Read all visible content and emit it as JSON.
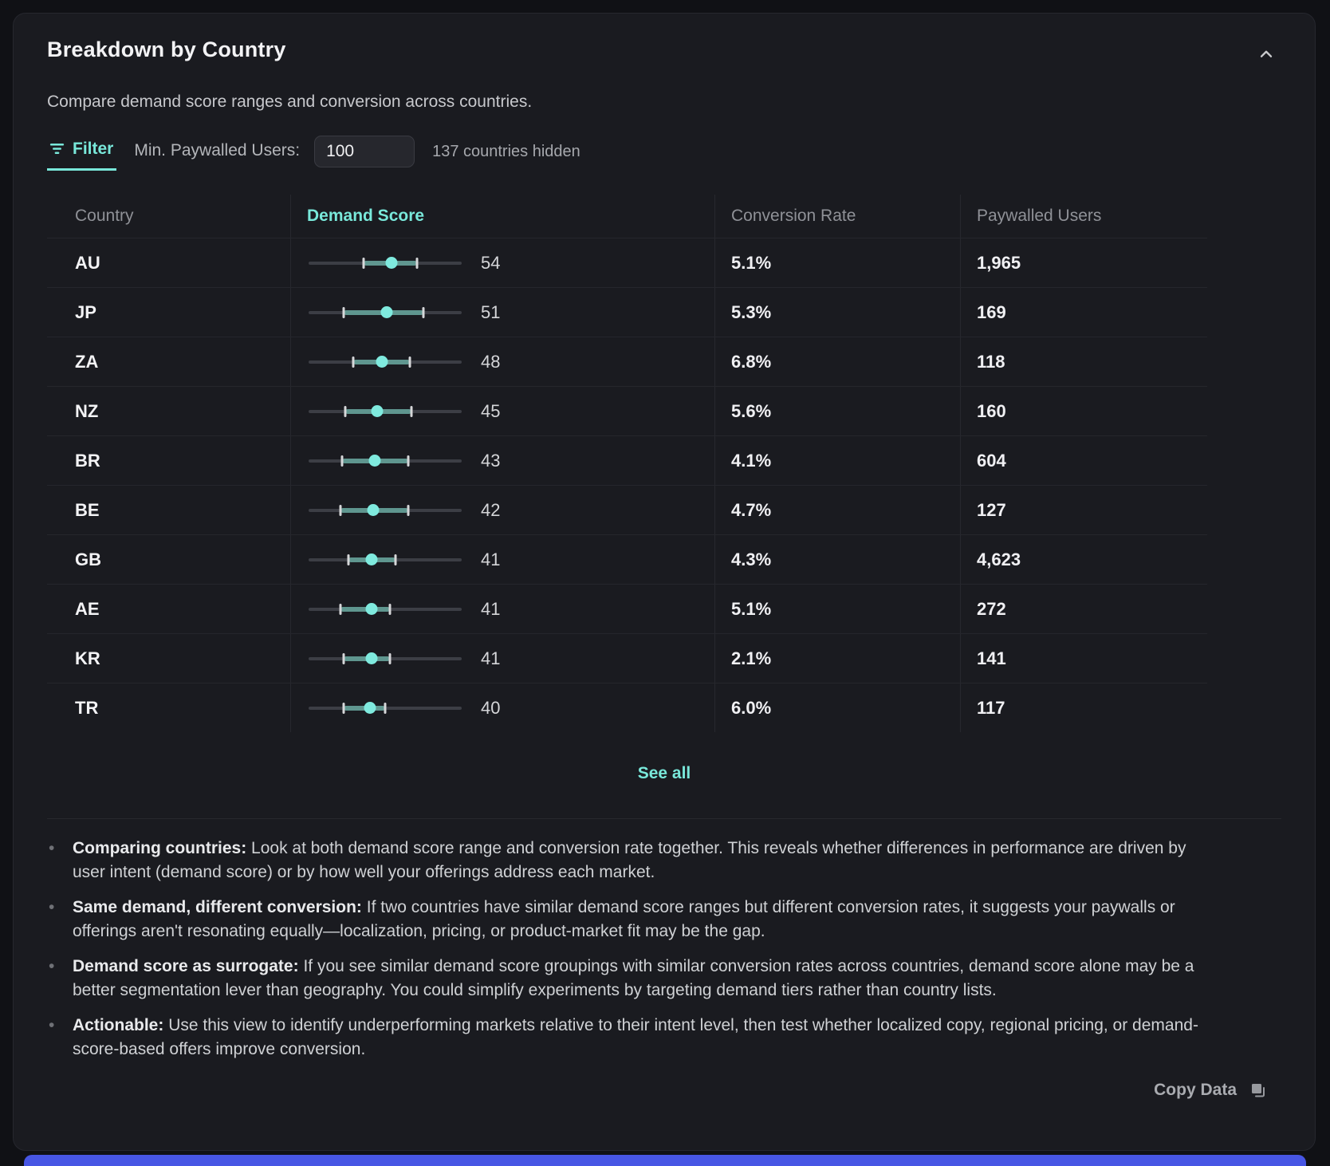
{
  "card": {
    "title": "Breakdown by Country",
    "subtitle": "Compare demand score ranges and conversion across countries."
  },
  "filter": {
    "tab_label": "Filter",
    "min_users_label": "Min. Paywalled Users:",
    "min_users_value": "100",
    "hidden_text": "137 countries hidden"
  },
  "table": {
    "columns": [
      "Country",
      "Demand Score",
      "Conversion Rate",
      "Paywalled Users"
    ],
    "sorted_column": "Demand Score",
    "rows": [
      {
        "country": "AU",
        "score": 54,
        "range_low": 36,
        "range_high": 71,
        "conversion": "5.1%",
        "paywalled_users": "1,965"
      },
      {
        "country": "JP",
        "score": 51,
        "range_low": 23,
        "range_high": 75,
        "conversion": "5.3%",
        "paywalled_users": "169"
      },
      {
        "country": "ZA",
        "score": 48,
        "range_low": 29,
        "range_high": 66,
        "conversion": "6.8%",
        "paywalled_users": "118"
      },
      {
        "country": "NZ",
        "score": 45,
        "range_low": 24,
        "range_high": 67,
        "conversion": "5.6%",
        "paywalled_users": "160"
      },
      {
        "country": "BR",
        "score": 43,
        "range_low": 22,
        "range_high": 65,
        "conversion": "4.1%",
        "paywalled_users": "604"
      },
      {
        "country": "BE",
        "score": 42,
        "range_low": 21,
        "range_high": 65,
        "conversion": "4.7%",
        "paywalled_users": "127"
      },
      {
        "country": "GB",
        "score": 41,
        "range_low": 26,
        "range_high": 57,
        "conversion": "4.3%",
        "paywalled_users": "4,623"
      },
      {
        "country": "AE",
        "score": 41,
        "range_low": 21,
        "range_high": 53,
        "conversion": "5.1%",
        "paywalled_users": "272"
      },
      {
        "country": "KR",
        "score": 41,
        "range_low": 23,
        "range_high": 53,
        "conversion": "2.1%",
        "paywalled_users": "141"
      },
      {
        "country": "TR",
        "score": 40,
        "range_low": 23,
        "range_high": 50,
        "conversion": "6.0%",
        "paywalled_users": "117"
      }
    ],
    "see_all_label": "See all"
  },
  "notes": [
    {
      "lead": "Comparing countries:",
      "text": "Look at both demand score range and conversion rate together. This reveals whether differences in performance are driven by user intent (demand score) or by how well your offerings address each market."
    },
    {
      "lead": "Same demand, different conversion:",
      "text": "If two countries have similar demand score ranges but different conversion rates, it suggests your paywalls or offerings aren't resonating equally—localization, pricing, or product-market fit may be the gap."
    },
    {
      "lead": "Demand score as surrogate:",
      "text": "If you see similar demand score groupings with similar conversion rates across countries, demand score alone may be a better segmentation lever than geography. You could simplify experiments by targeting demand tiers rather than country lists."
    },
    {
      "lead": "Actionable:",
      "text": "Use this view to identify underperforming markets relative to their intent level, then test whether localized copy, regional pricing, or demand-score-based offers improve conversion."
    }
  ],
  "footer": {
    "copy_label": "Copy Data"
  },
  "colors": {
    "accent_teal": "#79e8da",
    "range_band": "#5f968f",
    "dot": "#7feade",
    "bottom_bar_blue": "#4756e4"
  }
}
